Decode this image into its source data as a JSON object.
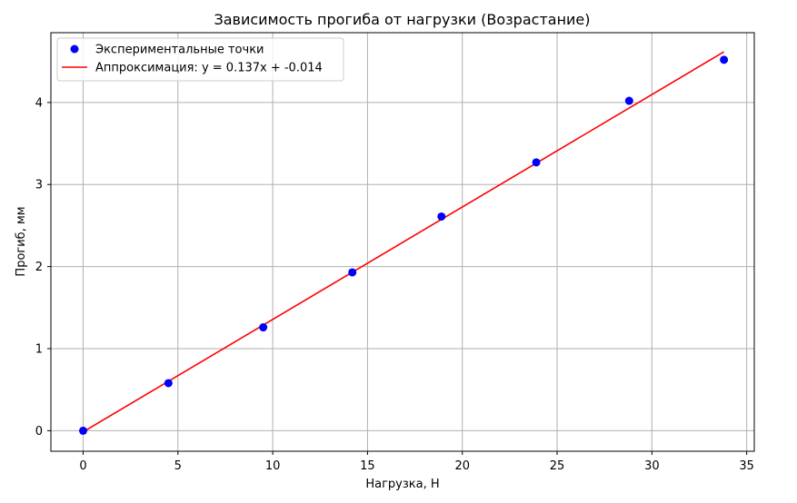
{
  "chart_data": {
    "type": "scatter",
    "title": "Зависимость прогиба от нагрузки (Возрастание)",
    "xlabel": "Нагрузка, Н",
    "ylabel": "Прогиб, мм",
    "xlim": [
      -1.7,
      35.4
    ],
    "ylim": [
      -0.25,
      4.85
    ],
    "xticks": [
      0,
      5,
      10,
      15,
      20,
      25,
      30,
      35
    ],
    "yticks": [
      0,
      1,
      2,
      3,
      4
    ],
    "grid": true,
    "legend_position": "top-left",
    "series": [
      {
        "name": "Экспериментальные точки",
        "kind": "scatter",
        "color": "#0000ff",
        "x": [
          0,
          4.5,
          9.5,
          14.2,
          18.9,
          23.9,
          28.8,
          33.8
        ],
        "y": [
          0,
          0.58,
          1.26,
          1.93,
          2.61,
          3.27,
          4.02,
          4.52
        ]
      },
      {
        "name": "Аппроксимация: y = 0.137x + -0.014",
        "kind": "line",
        "color": "#ff0000",
        "x": [
          0,
          33.8
        ],
        "y": [
          -0.014,
          4.617
        ]
      }
    ]
  }
}
